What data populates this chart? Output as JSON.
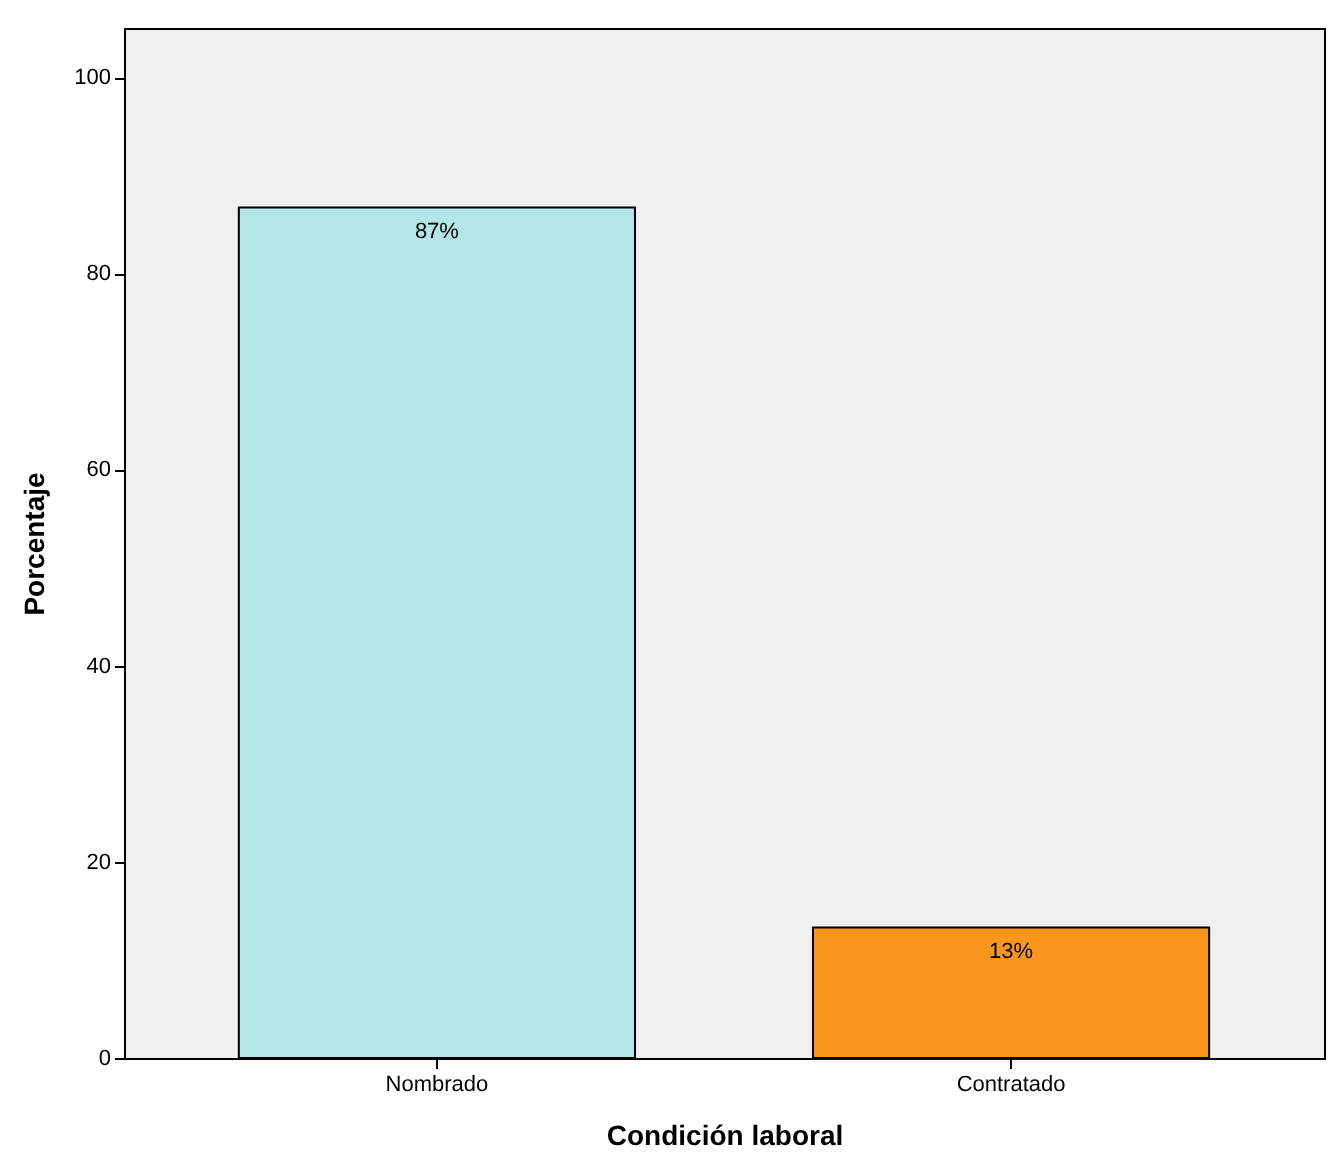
{
  "chart_data": {
    "type": "bar",
    "xlabel": "Condición laboral",
    "ylabel": "Porcentaje",
    "categories": [
      "Nombrado",
      "Contratado"
    ],
    "values": [
      86.7,
      13.3
    ],
    "colors": [
      "#b4e6e8",
      "#f7981d"
    ],
    "value_labels": [
      "87%",
      "13%"
    ],
    "ylim": [
      0,
      105
    ],
    "yticks": [
      0,
      20,
      40,
      60,
      80,
      100
    ],
    "grid": false
  }
}
